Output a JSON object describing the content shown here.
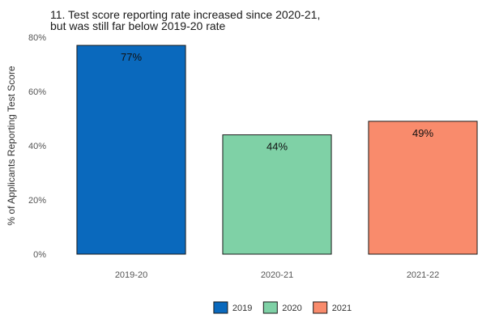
{
  "chart_data": {
    "type": "bar",
    "title_lines": [
      "11. Test score reporting rate increased since 2020-21,",
      "but was still far below 2019-20 rate"
    ],
    "xlabel": "",
    "ylabel": "% of Applicants Reporting Test Score",
    "categories": [
      "2019-20",
      "2020-21",
      "2021-22"
    ],
    "values": [
      0.77,
      0.44,
      0.49
    ],
    "data_labels": [
      "77%",
      "44%",
      "49%"
    ],
    "colors": [
      "#0a69bd",
      "#7fd1a6",
      "#f98b6c"
    ],
    "ylim": [
      0,
      0.8
    ],
    "yticks": [
      0,
      0.2,
      0.4,
      0.6,
      0.8
    ],
    "ytick_labels": [
      "0%",
      "20%",
      "40%",
      "60%",
      "80%"
    ],
    "grid": false,
    "legend": {
      "position": "bottom",
      "entries": [
        {
          "label": "2019",
          "color": "#0a69bd"
        },
        {
          "label": "2020",
          "color": "#7fd1a6"
        },
        {
          "label": "2021",
          "color": "#f98b6c"
        }
      ]
    }
  }
}
